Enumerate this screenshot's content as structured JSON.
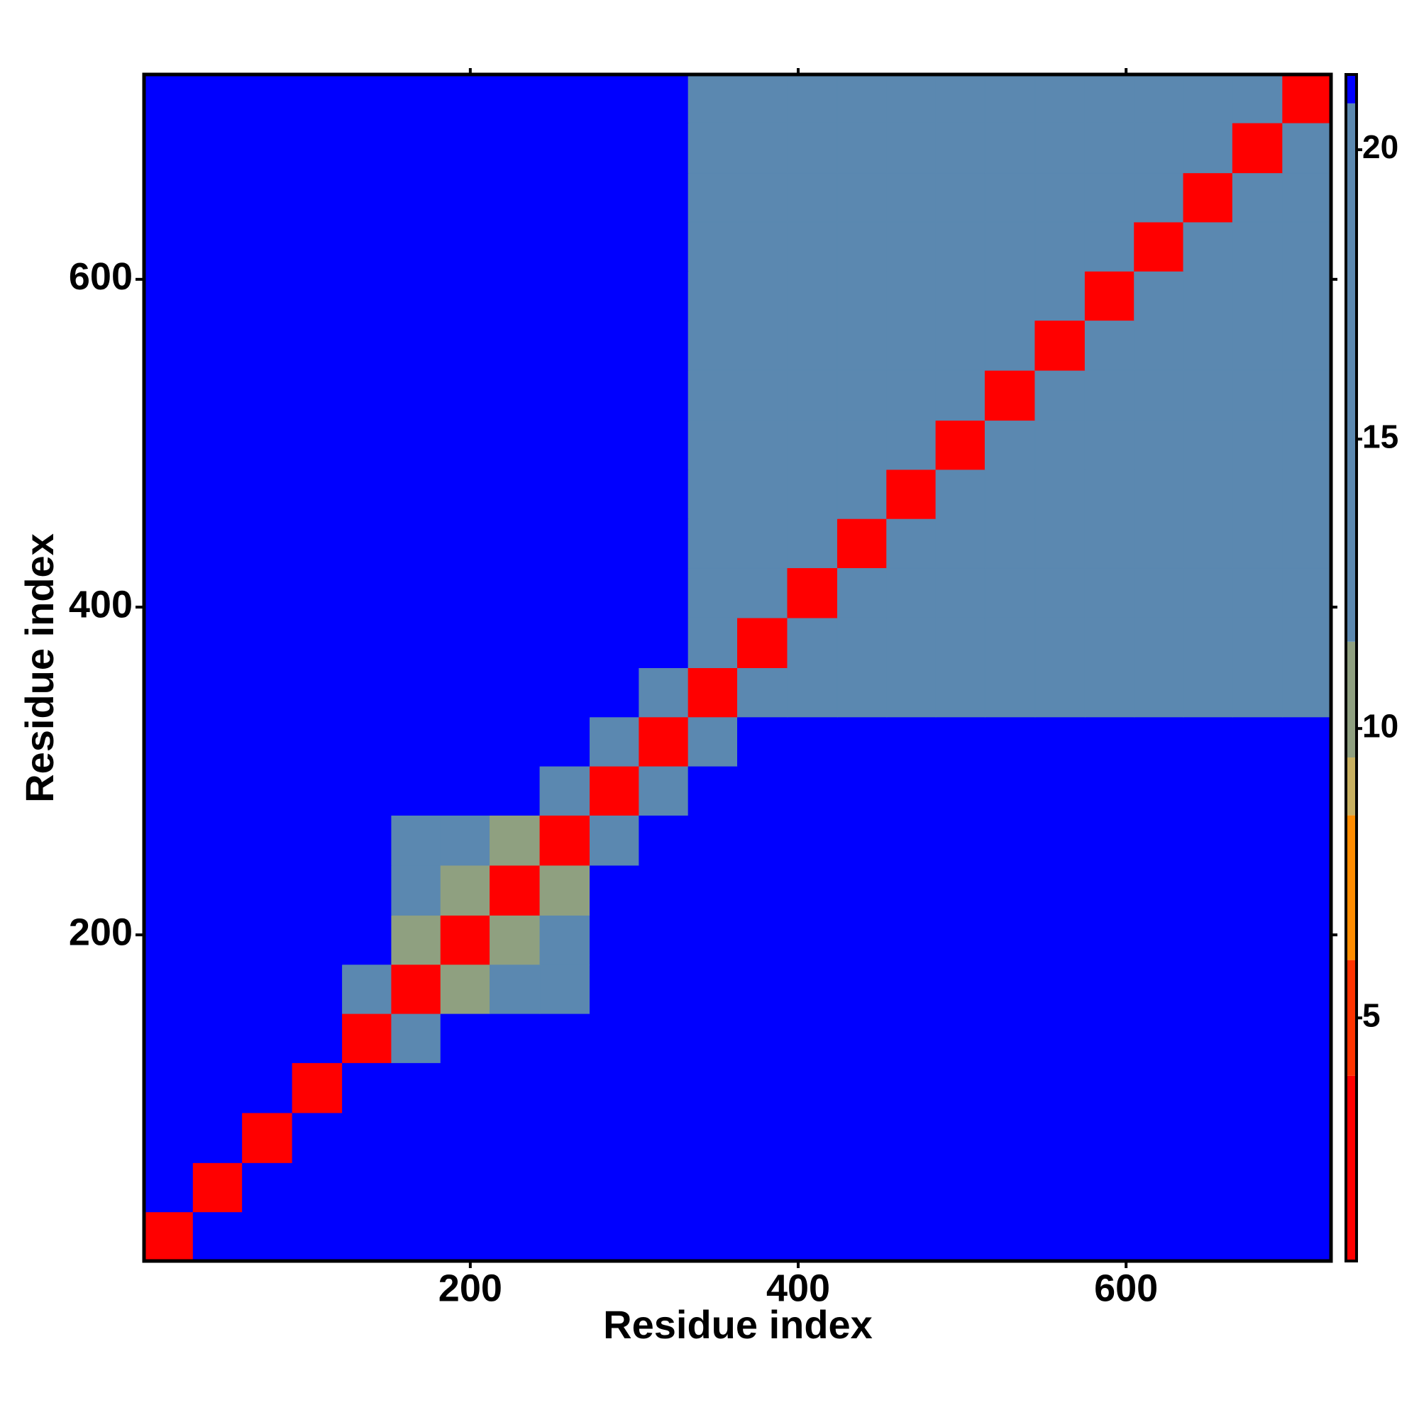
{
  "chart_data": {
    "type": "heatmap",
    "xlabel": "Residue index",
    "ylabel": "Residue index",
    "x": [
      16,
      46,
      76,
      107,
      137,
      167,
      197,
      227,
      258,
      288,
      318,
      348,
      378,
      409,
      439,
      469,
      499,
      529,
      560,
      590,
      620,
      650,
      680,
      711
    ],
    "y": [
      16,
      46,
      76,
      107,
      137,
      167,
      197,
      227,
      258,
      288,
      318,
      348,
      378,
      409,
      439,
      469,
      499,
      529,
      560,
      590,
      620,
      650,
      680,
      711
    ],
    "z": [
      [
        3,
        21,
        21,
        21,
        21,
        21,
        21,
        21,
        21,
        21,
        21,
        21,
        21,
        21,
        21,
        21,
        21,
        21,
        21,
        21,
        21,
        21,
        21,
        21
      ],
      [
        21,
        3,
        21,
        21,
        21,
        21,
        21,
        21,
        21,
        21,
        21,
        21,
        21,
        21,
        21,
        21,
        21,
        21,
        21,
        21,
        21,
        21,
        21,
        21
      ],
      [
        21,
        21,
        3,
        21,
        21,
        21,
        21,
        21,
        21,
        21,
        21,
        21,
        21,
        21,
        21,
        21,
        21,
        21,
        21,
        21,
        21,
        21,
        21,
        21
      ],
      [
        21,
        21,
        21,
        3,
        21,
        21,
        21,
        21,
        21,
        21,
        21,
        21,
        21,
        21,
        21,
        21,
        21,
        21,
        21,
        21,
        21,
        21,
        21,
        21
      ],
      [
        21,
        21,
        21,
        21,
        3,
        17,
        21,
        21,
        21,
        21,
        21,
        21,
        21,
        21,
        21,
        21,
        21,
        21,
        21,
        21,
        21,
        21,
        21,
        21
      ],
      [
        21,
        21,
        21,
        21,
        17,
        3,
        11,
        14,
        14,
        21,
        21,
        21,
        21,
        21,
        21,
        21,
        21,
        21,
        21,
        21,
        21,
        21,
        21,
        21
      ],
      [
        21,
        21,
        21,
        21,
        21,
        11,
        3,
        11,
        14,
        21,
        21,
        21,
        21,
        21,
        21,
        21,
        21,
        21,
        21,
        21,
        21,
        21,
        21,
        21
      ],
      [
        21,
        21,
        21,
        21,
        21,
        14,
        11,
        3,
        11,
        21,
        21,
        21,
        21,
        21,
        21,
        21,
        21,
        21,
        21,
        21,
        21,
        21,
        21,
        21
      ],
      [
        21,
        21,
        21,
        21,
        21,
        14,
        14,
        11,
        3,
        17,
        21,
        21,
        21,
        21,
        21,
        21,
        21,
        21,
        21,
        21,
        21,
        21,
        21,
        21
      ],
      [
        21,
        21,
        21,
        21,
        21,
        21,
        21,
        21,
        17,
        3,
        18,
        21,
        21,
        21,
        21,
        21,
        21,
        21,
        21,
        21,
        21,
        21,
        21,
        21
      ],
      [
        21,
        21,
        21,
        21,
        21,
        21,
        21,
        21,
        21,
        18,
        3,
        18,
        21,
        21,
        21,
        21,
        21,
        21,
        21,
        21,
        21,
        21,
        21,
        21
      ],
      [
        21,
        21,
        21,
        21,
        21,
        21,
        21,
        21,
        21,
        21,
        18,
        3,
        12,
        15,
        16,
        18,
        18,
        18,
        20,
        20,
        20,
        20,
        20,
        20
      ],
      [
        21,
        21,
        21,
        21,
        21,
        21,
        21,
        21,
        21,
        21,
        21,
        12,
        3,
        12,
        15,
        16,
        18,
        18,
        18,
        20,
        20,
        20,
        20,
        20
      ],
      [
        21,
        21,
        21,
        21,
        21,
        21,
        21,
        21,
        21,
        21,
        21,
        15,
        12,
        3,
        12,
        15,
        16,
        18,
        18,
        18,
        20,
        20,
        20,
        20
      ],
      [
        21,
        21,
        21,
        21,
        21,
        21,
        21,
        21,
        21,
        21,
        21,
        16,
        15,
        12,
        3,
        12,
        15,
        16,
        18,
        18,
        18,
        20,
        20,
        20
      ],
      [
        21,
        21,
        21,
        21,
        21,
        21,
        21,
        21,
        21,
        21,
        21,
        18,
        16,
        15,
        12,
        3,
        12,
        15,
        16,
        18,
        18,
        18,
        20,
        20
      ],
      [
        21,
        21,
        21,
        21,
        21,
        21,
        21,
        21,
        21,
        21,
        21,
        18,
        18,
        16,
        15,
        12,
        3,
        12,
        15,
        16,
        18,
        18,
        18,
        20
      ],
      [
        21,
        21,
        21,
        21,
        21,
        21,
        21,
        21,
        21,
        21,
        21,
        18,
        18,
        18,
        16,
        15,
        12,
        3,
        12,
        15,
        16,
        18,
        18,
        18
      ],
      [
        21,
        21,
        21,
        21,
        21,
        21,
        21,
        21,
        21,
        21,
        21,
        20,
        18,
        18,
        18,
        16,
        15,
        12,
        3,
        12,
        15,
        16,
        18,
        18
      ],
      [
        21,
        21,
        21,
        21,
        21,
        21,
        21,
        21,
        21,
        21,
        21,
        20,
        20,
        18,
        18,
        18,
        16,
        15,
        12,
        3,
        12,
        15,
        16,
        18
      ],
      [
        21,
        21,
        21,
        21,
        21,
        21,
        21,
        21,
        21,
        21,
        21,
        20,
        20,
        20,
        18,
        18,
        18,
        16,
        15,
        12,
        3,
        12,
        15,
        16
      ],
      [
        21,
        21,
        21,
        21,
        21,
        21,
        21,
        21,
        21,
        21,
        21,
        20,
        20,
        20,
        20,
        18,
        18,
        18,
        16,
        15,
        12,
        3,
        12,
        15
      ],
      [
        21,
        21,
        21,
        21,
        21,
        21,
        21,
        21,
        21,
        21,
        21,
        20,
        20,
        20,
        20,
        20,
        18,
        18,
        18,
        16,
        15,
        12,
        3,
        12
      ],
      [
        21,
        21,
        21,
        21,
        21,
        21,
        21,
        21,
        21,
        21,
        21,
        20,
        20,
        20,
        20,
        20,
        20,
        18,
        18,
        18,
        16,
        15,
        12,
        3
      ]
    ],
    "xlim": [
      1,
      725
    ],
    "ylim": [
      1,
      725
    ],
    "xticks": [
      200,
      400,
      600
    ],
    "yticks": [
      200,
      400,
      600
    ],
    "clim": [
      0.8,
      21.3
    ],
    "cticks": [
      5,
      10,
      15,
      20
    ],
    "colorscale": [
      [
        0.8,
        "#ff0000"
      ],
      [
        4,
        "#ff3300"
      ],
      [
        6,
        "#ff8c00"
      ],
      [
        8.5,
        "#c8b060"
      ],
      [
        9.5,
        "#8fa080"
      ],
      [
        11.5,
        "#5b88b0"
      ],
      [
        20.8,
        "#0000ff"
      ]
    ]
  }
}
